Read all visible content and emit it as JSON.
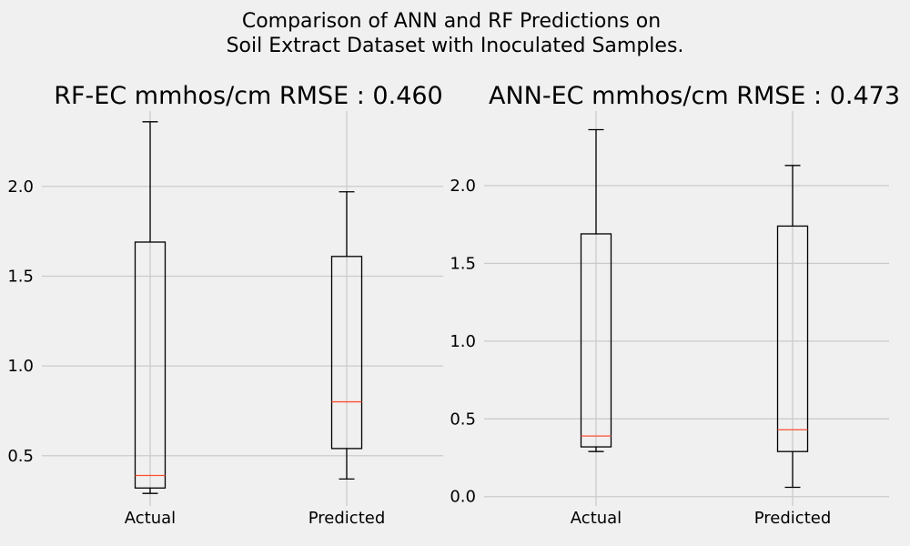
{
  "figure": {
    "suptitle_line1": "Comparison of ANN and RF Predictions on",
    "suptitle_line2": "Soil Extract Dataset with Inoculated Samples.",
    "background": "#f0f0f0"
  },
  "chart_data": [
    {
      "type": "box",
      "title": "RF-EC mmhos/cm RMSE : 0.460",
      "xlabel": "",
      "ylabel": "",
      "categories": [
        "Actual",
        "Predicted"
      ],
      "ylim": [
        0.22,
        2.42
      ],
      "yticks": [
        0.5,
        1.0,
        1.5,
        2.0
      ],
      "ytick_labels": [
        "0.5",
        "1.0",
        "1.5",
        "2.0"
      ],
      "grid": true,
      "boxes": [
        {
          "label": "Actual",
          "whisker_low": 0.29,
          "q1": 0.32,
          "median": 0.39,
          "q3": 1.69,
          "whisker_high": 2.36
        },
        {
          "label": "Predicted",
          "whisker_low": 0.37,
          "q1": 0.54,
          "median": 0.8,
          "q3": 1.61,
          "whisker_high": 1.97
        }
      ]
    },
    {
      "type": "box",
      "title": "ANN-EC mmhos/cm RMSE : 0.473",
      "xlabel": "",
      "ylabel": "",
      "categories": [
        "Actual",
        "Predicted"
      ],
      "ylim": [
        -0.06,
        2.48
      ],
      "yticks": [
        0.0,
        0.5,
        1.0,
        1.5,
        2.0
      ],
      "ytick_labels": [
        "0.0",
        "0.5",
        "1.0",
        "1.5",
        "2.0"
      ],
      "grid": true,
      "boxes": [
        {
          "label": "Actual",
          "whisker_low": 0.29,
          "q1": 0.32,
          "median": 0.39,
          "q3": 1.69,
          "whisker_high": 2.36
        },
        {
          "label": "Predicted",
          "whisker_low": 0.06,
          "q1": 0.29,
          "median": 0.43,
          "q3": 1.74,
          "whisker_high": 2.13
        }
      ]
    }
  ],
  "colors": {
    "grid": "#cbcbcb",
    "box": "#000000",
    "median": "#fc4f30"
  }
}
